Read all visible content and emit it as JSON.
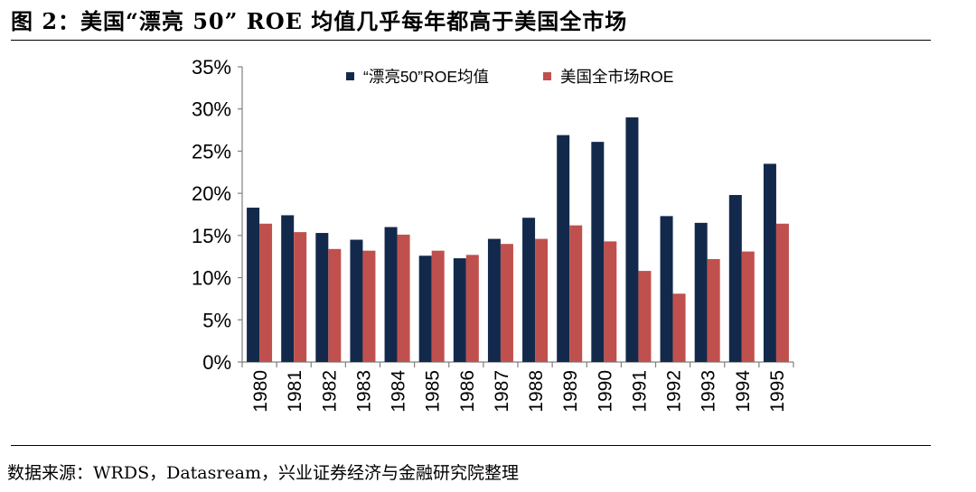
{
  "header": {
    "title": "图 2：美国“漂亮 50” ROE 均值几乎每年都高于美国全市场"
  },
  "footer": {
    "source": "数据来源：WRDS，Datasream，兴业证券经济与金融研究院整理"
  },
  "colors": {
    "series_1": "#13294b",
    "series_2": "#c0504d"
  },
  "chart_data": {
    "type": "bar",
    "categories": [
      "1980",
      "1981",
      "1982",
      "1983",
      "1984",
      "1985",
      "1986",
      "1987",
      "1988",
      "1989",
      "1990",
      "1991",
      "1992",
      "1993",
      "1994",
      "1995"
    ],
    "series": [
      {
        "name": "“漂亮50”ROE均值",
        "values": [
          18.3,
          17.4,
          15.3,
          14.5,
          16.0,
          12.6,
          12.3,
          14.6,
          17.1,
          26.9,
          26.1,
          29.0,
          17.3,
          16.5,
          19.8,
          23.5
        ]
      },
      {
        "name": "美国全市场ROE",
        "values": [
          16.4,
          15.4,
          13.4,
          13.2,
          15.1,
          13.2,
          12.7,
          14.0,
          14.6,
          16.2,
          14.3,
          10.8,
          8.1,
          12.2,
          13.1,
          16.4
        ]
      }
    ],
    "yticks": [
      "0%",
      "5%",
      "10%",
      "15%",
      "20%",
      "25%",
      "30%",
      "35%"
    ],
    "ylim": [
      0,
      35
    ],
    "grid": false,
    "legend_position": "top-center",
    "xlabel": "",
    "ylabel": ""
  }
}
